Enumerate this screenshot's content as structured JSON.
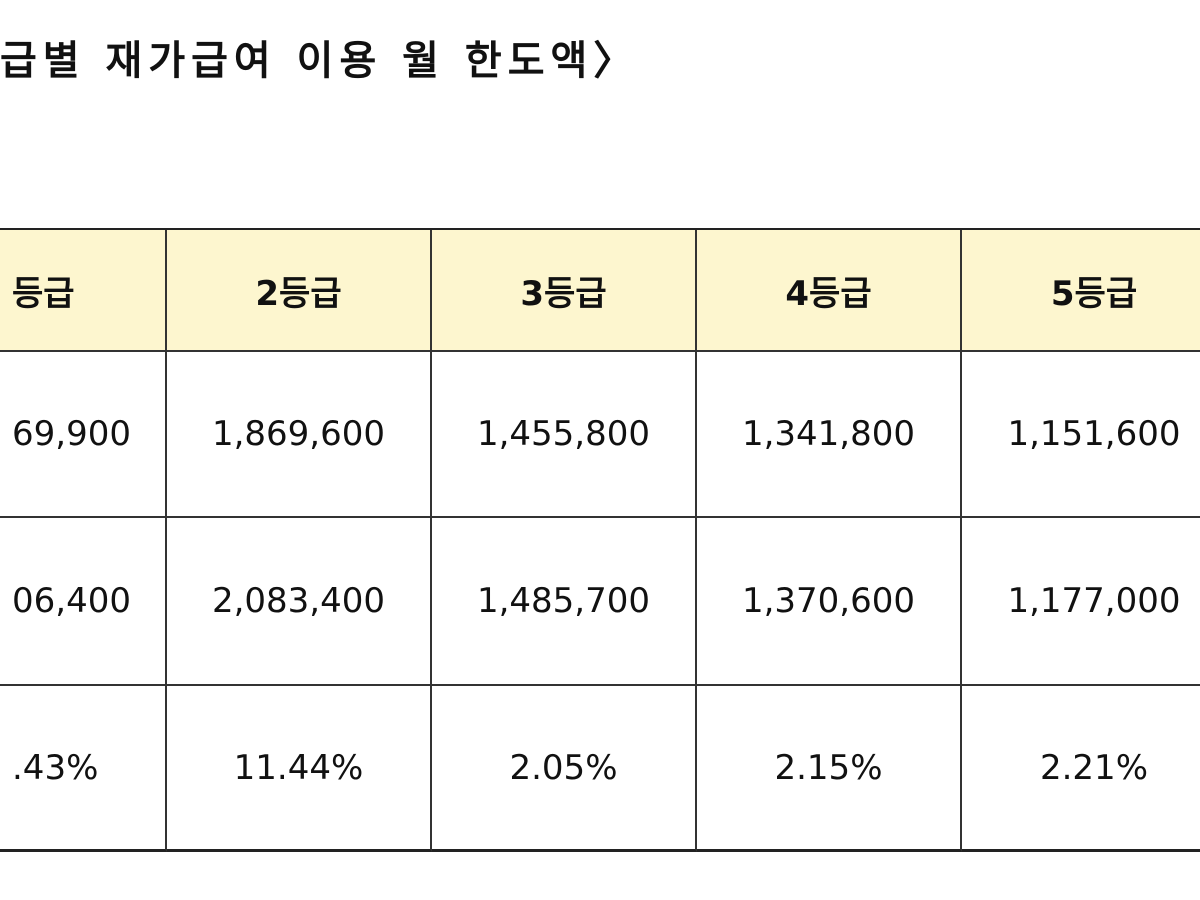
{
  "title": "급별 재가급여 이용 월 한도액〉",
  "table": {
    "header": [
      "등급",
      "2등급",
      "3등급",
      "4등급",
      "5등급"
    ],
    "rows": [
      [
        "69,900",
        "1,869,600",
        "1,455,800",
        "1,341,800",
        "1,151,600"
      ],
      [
        "06,400",
        "2,083,400",
        "1,485,700",
        "1,370,600",
        "1,177,000"
      ],
      [
        ".43%",
        "11.44%",
        "2.05%",
        "2.15%",
        "2.21%"
      ]
    ]
  }
}
